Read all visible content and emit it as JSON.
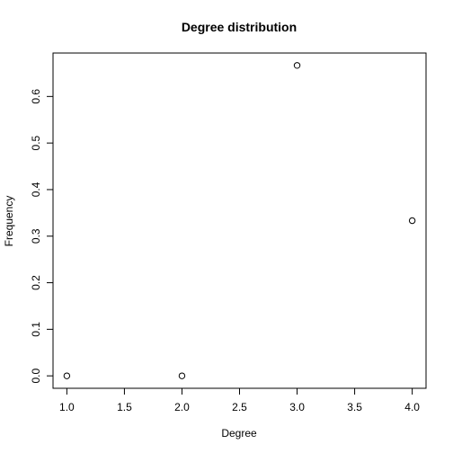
{
  "chart_data": {
    "type": "scatter",
    "title": "Degree distribution",
    "xlabel": "Degree",
    "ylabel": "Frequency",
    "x": [
      1,
      2,
      3,
      4
    ],
    "y": [
      0,
      0,
      0.6667,
      0.3333
    ],
    "xlim": [
      0.88,
      4.12
    ],
    "ylim": [
      -0.0267,
      0.6933
    ],
    "xticks": [
      1.0,
      1.5,
      2.0,
      2.5,
      3.0,
      3.5,
      4.0
    ],
    "xtick_labels": [
      "1.0",
      "1.5",
      "2.0",
      "2.5",
      "3.0",
      "3.5",
      "4.0"
    ],
    "yticks": [
      0.0,
      0.1,
      0.2,
      0.3,
      0.4,
      0.5,
      0.6
    ],
    "ytick_labels": [
      "0.0",
      "0.1",
      "0.2",
      "0.3",
      "0.4",
      "0.5",
      "0.6"
    ],
    "grid": false,
    "marker": "open-circle",
    "colors": {
      "foreground": "#000000",
      "background": "#ffffff"
    }
  }
}
